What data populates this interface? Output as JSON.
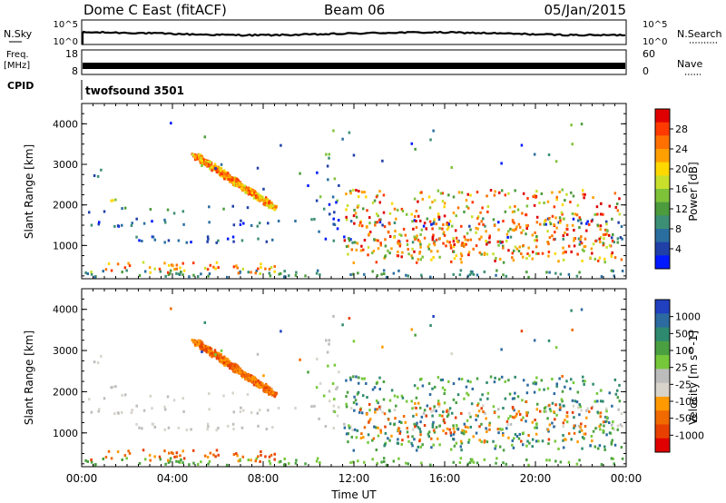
{
  "header": {
    "station": "Dome C East (fitACF)",
    "beam": "Beam 06",
    "date": "05/Jan/2015"
  },
  "nsky_panel": {
    "left_label": "N.Sky",
    "left_ticks": [
      "10^5",
      "10^0"
    ],
    "right_label": "N.Search",
    "right_ticks": [
      "10^5",
      "10^0"
    ]
  },
  "freq_panel": {
    "left_label": "Freq.",
    "left_unit": "[MHz]",
    "left_ticks": [
      "18",
      "8"
    ],
    "right_label": "Nave",
    "right_ticks": [
      "60",
      "0"
    ]
  },
  "cpid_panel": {
    "label": "CPID",
    "value": "twofsound 3501"
  },
  "colors": {
    "power": [
      "#0019ff",
      "#2040a8",
      "#2a6ea0",
      "#3c8f74",
      "#4c9b3c",
      "#7ec23a",
      "#c8e02c",
      "#ffd800",
      "#ffa000",
      "#ff7000",
      "#ff3a00",
      "#e00000"
    ],
    "velocity": [
      "#2040c0",
      "#2c6aa0",
      "#2e8a6e",
      "#4aa040",
      "#76c83a",
      "#bcbcbc",
      "#d8d4cc",
      "#ff9a00",
      "#f06a00",
      "#e84000",
      "#e00000"
    ]
  },
  "chart_data": [
    {
      "type": "heatmap",
      "quantity": "Power",
      "xlabel": "Time UT",
      "x_ticks": [
        "00:00",
        "04:00",
        "08:00",
        "12:00",
        "16:00",
        "20:00",
        "00:00"
      ],
      "xlim": [
        0,
        24
      ],
      "ylabel": "Slant Range [km]",
      "y_ticks": [
        1000,
        2000,
        3000,
        4000
      ],
      "ylim": [
        180,
        4500
      ],
      "colorbar_label": "Power [dB]",
      "colorbar_ticks": [
        "4",
        "8",
        "12",
        "16",
        "20",
        "24",
        "28"
      ],
      "colorbar_range": [
        0,
        30
      ]
    },
    {
      "type": "heatmap",
      "quantity": "Velocity",
      "xlabel": "Time UT",
      "x_ticks": [
        "00:00",
        "04:00",
        "08:00",
        "12:00",
        "16:00",
        "20:00",
        "00:00"
      ],
      "xlim": [
        0,
        24
      ],
      "ylabel": "Slant Range [km]",
      "y_ticks": [
        1000,
        2000,
        3000,
        4000
      ],
      "ylim": [
        180,
        4500
      ],
      "colorbar_label": "Velocity [m s^-1]",
      "colorbar_ticks": [
        "1000",
        "500",
        "100",
        "25",
        "-25",
        "-100",
        "-500",
        "-1000"
      ]
    }
  ]
}
